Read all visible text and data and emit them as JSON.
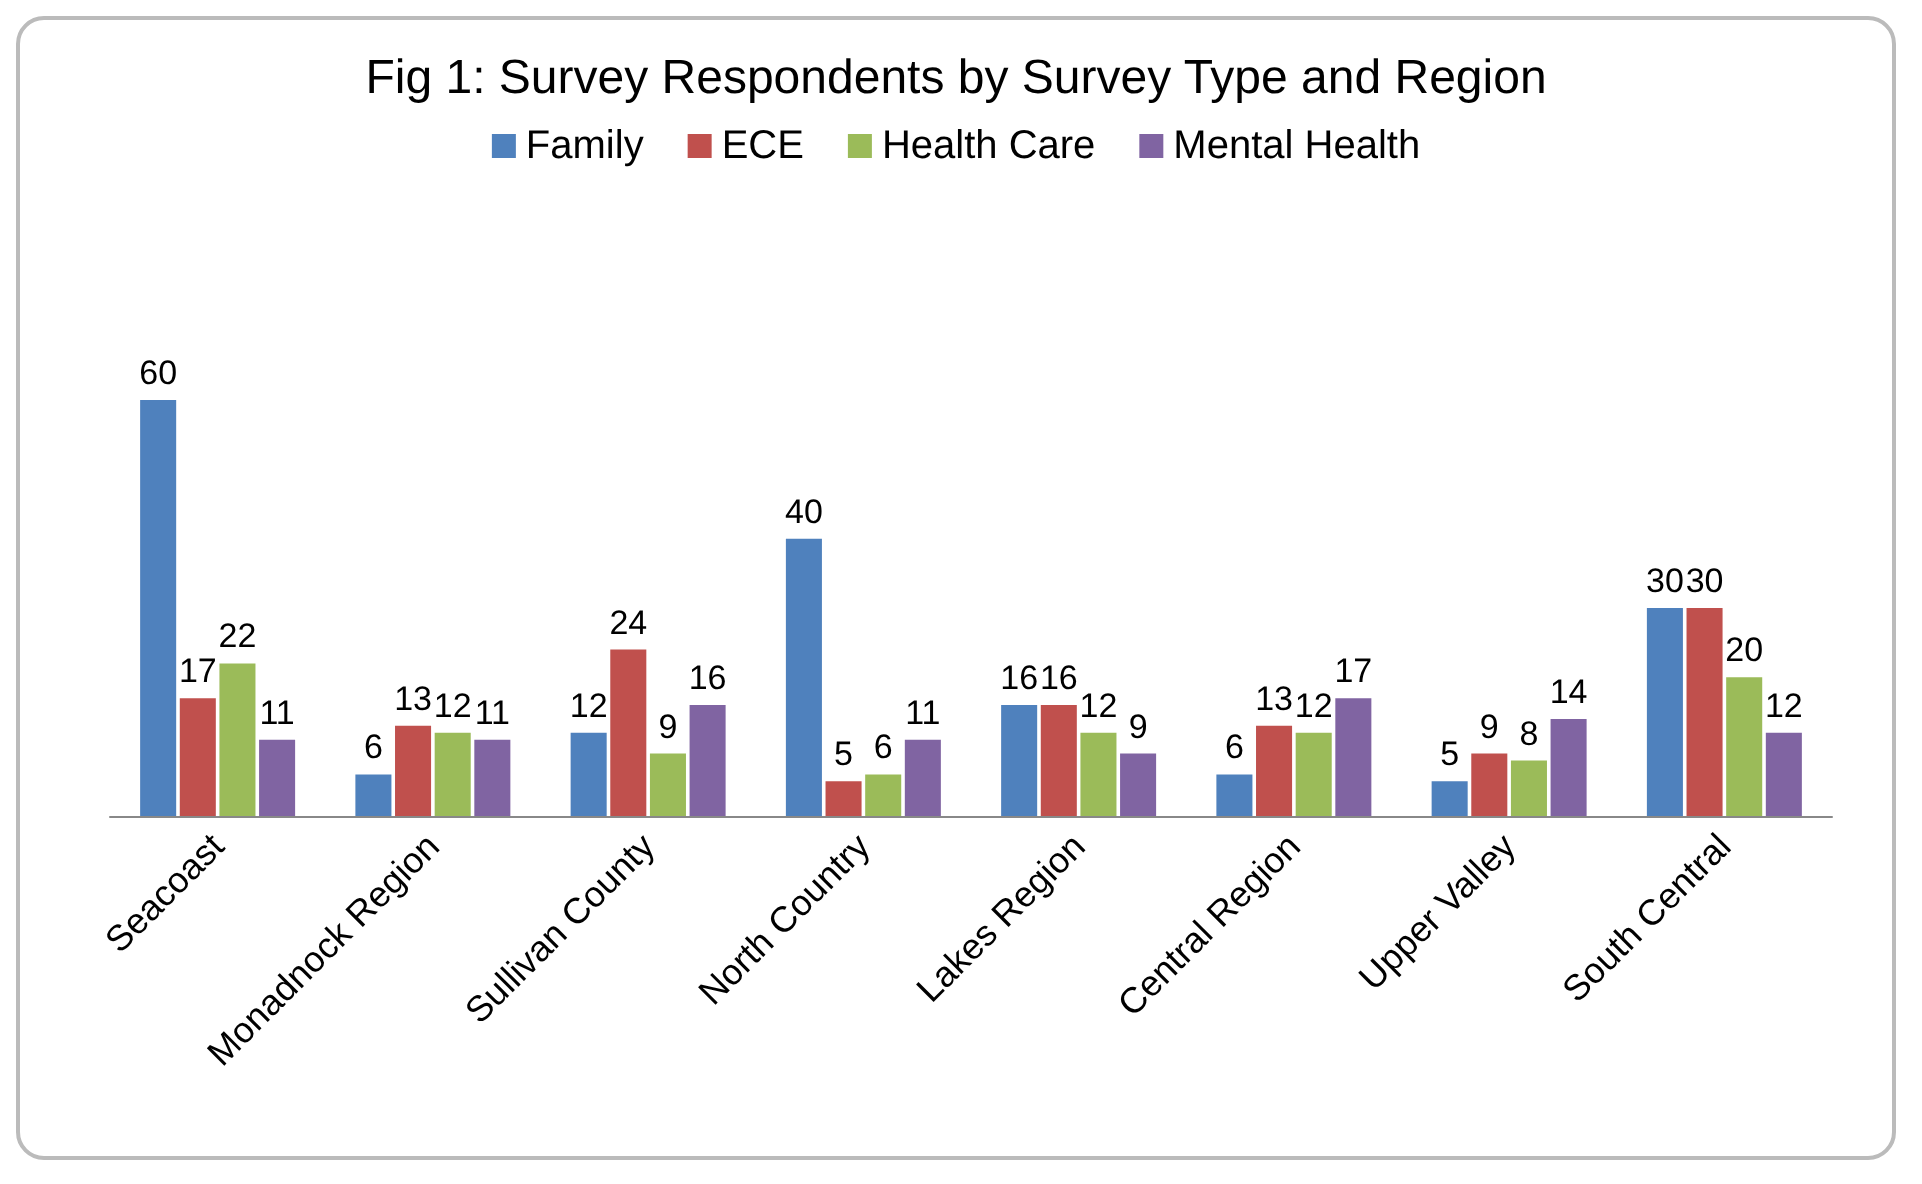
{
  "chart_data": {
    "type": "bar",
    "title": "Fig 1: Survey Respondents by Survey Type and Region",
    "categories": [
      "Seacoast",
      "Monadnock Region",
      "Sullivan County",
      "North Country",
      "Lakes Region",
      "Central Region",
      "Upper Valley",
      "South Central"
    ],
    "series": [
      {
        "name": "Family",
        "color": "#4f81bd",
        "values": [
          60,
          6,
          12,
          40,
          16,
          6,
          5,
          30
        ]
      },
      {
        "name": "ECE",
        "color": "#c0504d",
        "values": [
          17,
          13,
          24,
          5,
          16,
          13,
          9,
          30
        ]
      },
      {
        "name": "Health Care",
        "color": "#9bbb59",
        "values": [
          22,
          12,
          9,
          6,
          12,
          12,
          8,
          20
        ]
      },
      {
        "name": "Mental Health",
        "color": "#8064a2",
        "values": [
          11,
          11,
          16,
          11,
          9,
          17,
          14,
          12
        ]
      }
    ],
    "data_labels": true,
    "legend": "top"
  }
}
